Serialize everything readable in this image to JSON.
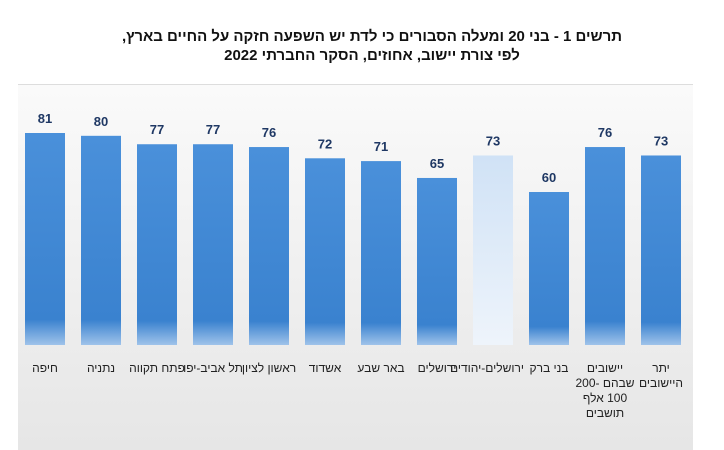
{
  "chart_data": {
    "type": "bar",
    "title": "תרשים 1 - בני 20 ומעלה הסבורים כי לדת יש השפעה חזקה על החיים בארץ,",
    "subtitle": "לפי צורת יישוב, אחוזים, הסקר החברתי 2022",
    "categories": [
      "חיפה",
      "נתניה",
      "פתח תקווה",
      "תל אביב-יפו",
      "ראשון לציון",
      "אשדוד",
      "באר שבע",
      "ירושלים",
      "ירושלים-יהודים",
      "בני ברק",
      "יישובים שבהם 200-100 אלף תושבים",
      "יתר היישובים"
    ],
    "values": [
      81,
      80,
      77,
      77,
      76,
      72,
      71,
      65,
      73,
      60,
      76,
      73
    ],
    "data_labels": [
      "81",
      "80",
      "77",
      "77",
      "76",
      "72",
      "71",
      "65",
      "73",
      "60",
      "76",
      "73"
    ],
    "highlighted_category": "ירושלים-יהודים",
    "xlabel": "",
    "ylabel": "",
    "grid": false,
    "colors": {
      "bar": "#3f86d0",
      "highlight": "#d6e6f7"
    }
  }
}
